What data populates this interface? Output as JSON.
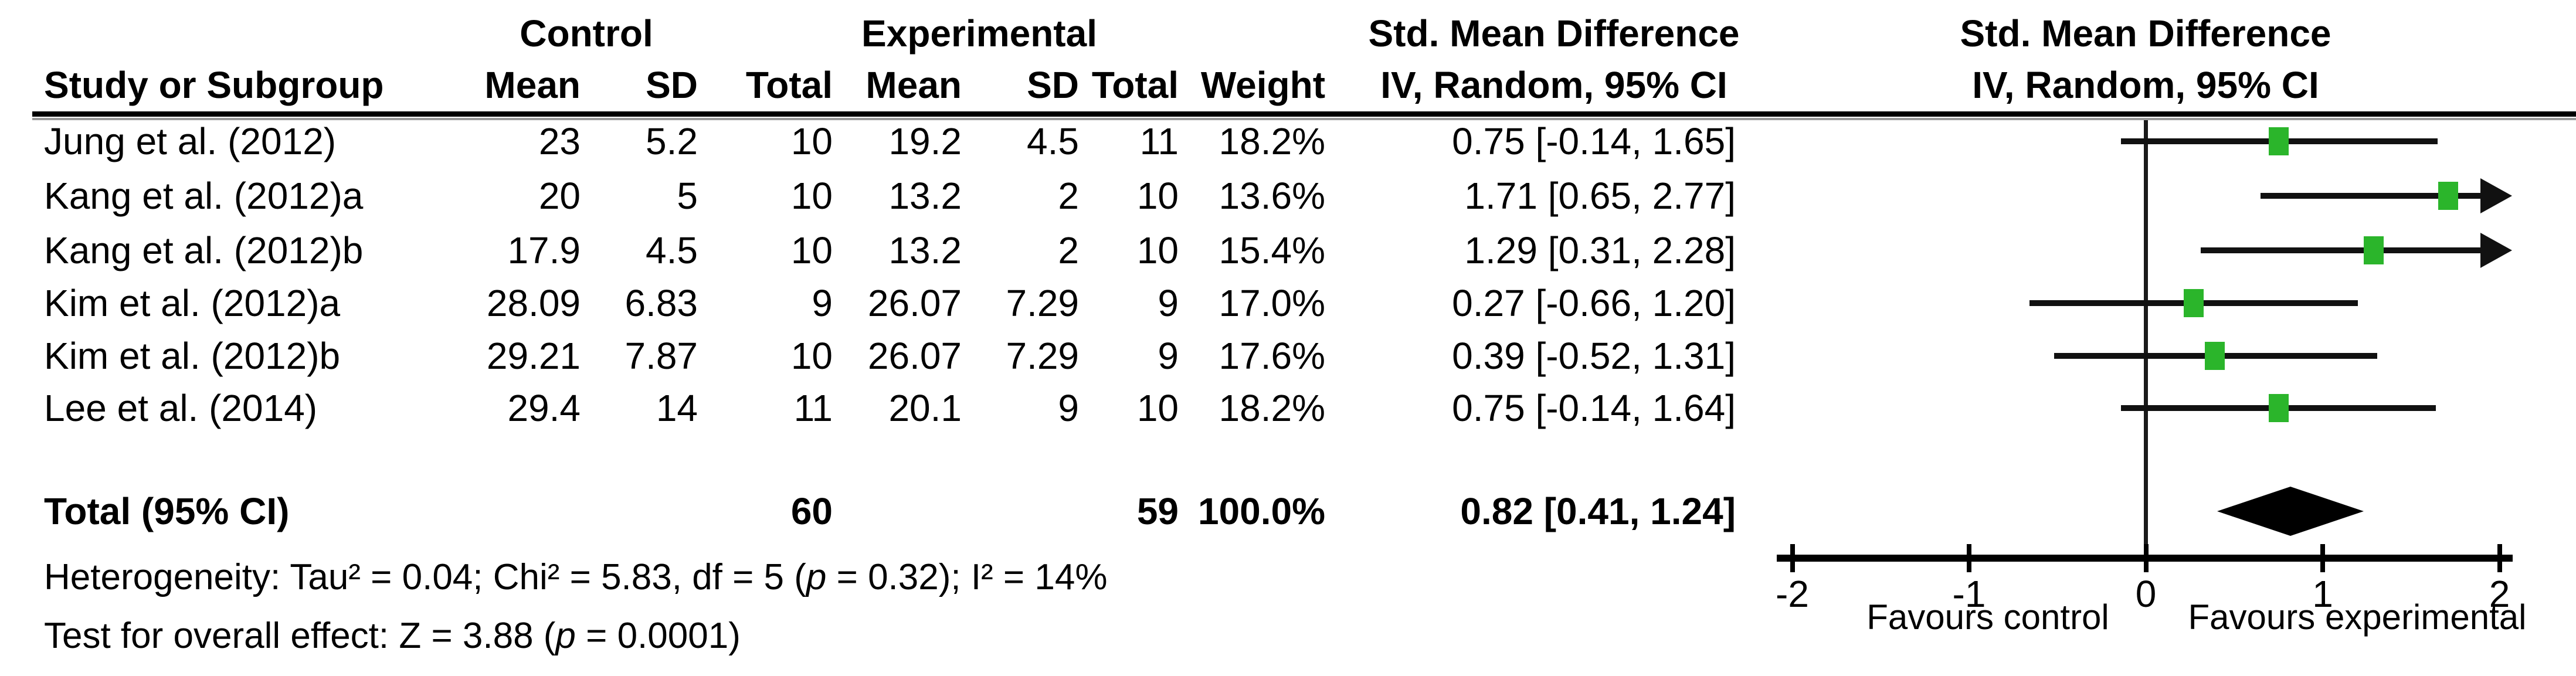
{
  "table": {
    "group_headers": {
      "control": "Control",
      "experimental": "Experimental",
      "smd_left": "Std. Mean Difference",
      "smd_right": "Std. Mean Difference"
    },
    "col_headers": {
      "study": "Study or Subgroup",
      "mean_c": "Mean",
      "sd_c": "SD",
      "total_c": "Total",
      "mean_e": "Mean",
      "sd_e": "SD",
      "total_e": "Total",
      "weight": "Weight",
      "iv_left": "IV, Random, 95% CI",
      "iv_right": "IV, Random, 95% CI"
    },
    "rows": [
      {
        "study": "Jung et al. (2012)",
        "mean_c": "23",
        "sd_c": "5.2",
        "total_c": "10",
        "mean_e": "19.2",
        "sd_e": "4.5",
        "total_e": "11",
        "weight": "18.2%",
        "ci": "0.75 [-0.14, 1.65]"
      },
      {
        "study": "Kang et al. (2012)a",
        "mean_c": "20",
        "sd_c": "5",
        "total_c": "10",
        "mean_e": "13.2",
        "sd_e": "2",
        "total_e": "10",
        "weight": "13.6%",
        "ci": "1.71 [0.65, 2.77]"
      },
      {
        "study": "Kang et al. (2012)b",
        "mean_c": "17.9",
        "sd_c": "4.5",
        "total_c": "10",
        "mean_e": "13.2",
        "sd_e": "2",
        "total_e": "10",
        "weight": "15.4%",
        "ci": "1.29 [0.31, 2.28]"
      },
      {
        "study": "Kim et al. (2012)a",
        "mean_c": "28.09",
        "sd_c": "6.83",
        "total_c": "9",
        "mean_e": "26.07",
        "sd_e": "7.29",
        "total_e": "9",
        "weight": "17.0%",
        "ci": "0.27 [-0.66, 1.20]"
      },
      {
        "study": "Kim et al. (2012)b",
        "mean_c": "29.21",
        "sd_c": "7.87",
        "total_c": "10",
        "mean_e": "26.07",
        "sd_e": "7.29",
        "total_e": "9",
        "weight": "17.6%",
        "ci": "0.39 [-0.52, 1.31]"
      },
      {
        "study": "Lee et al. (2014)",
        "mean_c": "29.4",
        "sd_c": "14",
        "total_c": "11",
        "mean_e": "20.1",
        "sd_e": "9",
        "total_e": "10",
        "weight": "18.2%",
        "ci": "0.75 [-0.14, 1.64]"
      }
    ],
    "total_row": {
      "label": "Total (95% CI)",
      "total_c": "60",
      "total_e": "59",
      "weight": "100.0%",
      "ci": "0.82 [0.41, 1.24]"
    }
  },
  "footer": {
    "heterogeneity_pre": "Heterogeneity: Tau² = 0.04; Chi² = 5.83, df = 5 (",
    "heterogeneity_p": "p",
    "heterogeneity_post": " = 0.32); I² = 14%",
    "test_pre": "Test for overall effect: Z = 3.88 (",
    "test_p": "p",
    "test_post": " = 0.0001)"
  },
  "axis": {
    "ticks": [
      "-2",
      "-1",
      "0",
      "1",
      "2"
    ],
    "favours_left": "Favours control",
    "favours_right": "Favours experimental"
  },
  "colors": {
    "square_green": "#2BB52B",
    "diamond_black": "#000000",
    "line_black": "#111111"
  },
  "chart_data": {
    "type": "forest",
    "effect_measure": "Std. Mean Difference (IV, Random, 95% CI)",
    "axis_range": [
      -2,
      2
    ],
    "axis_ticks": [
      -2,
      -1,
      0,
      1,
      2
    ],
    "favours": [
      "Favours control",
      "Favours experimental"
    ],
    "studies": [
      {
        "name": "Jung et al. (2012)",
        "est": 0.75,
        "lo": -0.14,
        "hi": 1.65,
        "weight_pct": 18.2,
        "arrow_right": false
      },
      {
        "name": "Kang et al. (2012)a",
        "est": 1.71,
        "lo": 0.65,
        "hi": 2.77,
        "weight_pct": 13.6,
        "arrow_right": true
      },
      {
        "name": "Kang et al. (2012)b",
        "est": 1.29,
        "lo": 0.31,
        "hi": 2.28,
        "weight_pct": 15.4,
        "arrow_right": true
      },
      {
        "name": "Kim et al. (2012)a",
        "est": 0.27,
        "lo": -0.66,
        "hi": 1.2,
        "weight_pct": 17.0,
        "arrow_right": false
      },
      {
        "name": "Kim et al. (2012)b",
        "est": 0.39,
        "lo": -0.52,
        "hi": 1.31,
        "weight_pct": 17.6,
        "arrow_right": false
      },
      {
        "name": "Lee et al. (2014)",
        "est": 0.75,
        "lo": -0.14,
        "hi": 1.64,
        "weight_pct": 18.2,
        "arrow_right": false
      }
    ],
    "total": {
      "est": 0.82,
      "lo": 0.41,
      "hi": 1.24,
      "total_control": 60,
      "total_experimental": 59,
      "weight_pct": 100.0
    },
    "heterogeneity": {
      "tau2": 0.04,
      "chi2": 5.83,
      "df": 5,
      "p": 0.32,
      "i2_pct": 14
    },
    "overall_effect": {
      "z": 3.88,
      "p": 0.0001
    }
  }
}
